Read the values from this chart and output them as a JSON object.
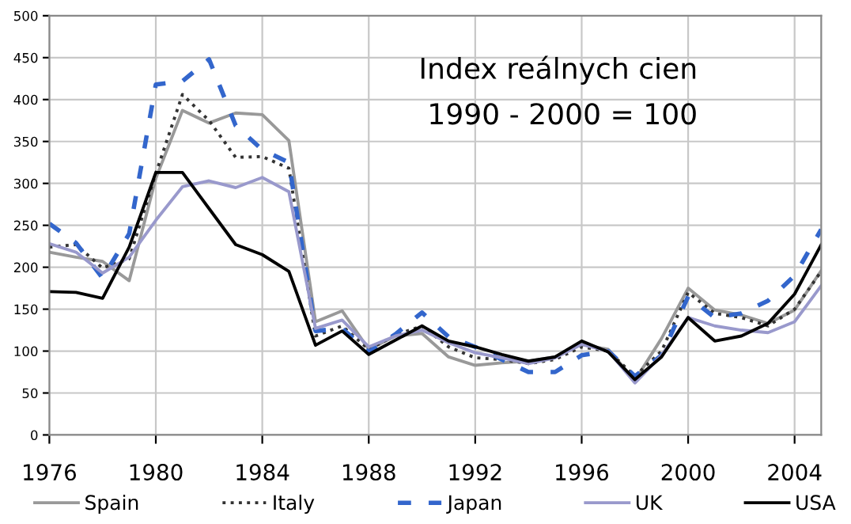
{
  "chart_data": {
    "type": "line",
    "x": [
      1976,
      1977,
      1978,
      1979,
      1980,
      1981,
      1982,
      1983,
      1984,
      1985,
      1986,
      1987,
      1988,
      1989,
      1990,
      1991,
      1992,
      1993,
      1994,
      1995,
      1996,
      1997,
      1998,
      1999,
      2000,
      2001,
      2002,
      2003,
      2004,
      2005
    ],
    "series": [
      {
        "name": "Spain",
        "color": "#999999",
        "line_style": "solid",
        "values": [
          218,
          212,
          207,
          184,
          306,
          387,
          372,
          384,
          382,
          351,
          135,
          148,
          102,
          118,
          121,
          93,
          83,
          86,
          88,
          93,
          108,
          102,
          65,
          115,
          175,
          149,
          143,
          133,
          149,
          196
        ]
      },
      {
        "name": "Italy",
        "color": "#333333",
        "line_style": "dotted",
        "values": [
          224,
          227,
          199,
          210,
          312,
          406,
          375,
          331,
          332,
          318,
          118,
          130,
          102,
          119,
          130,
          105,
          92,
          90,
          85,
          90,
          105,
          100,
          70,
          100,
          170,
          145,
          140,
          130,
          150,
          195
        ]
      },
      {
        "name": "Japan",
        "color": "#3366cc",
        "line_style": "dashed",
        "values": [
          252,
          229,
          187,
          240,
          418,
          422,
          448,
          369,
          340,
          325,
          124,
          127,
          99,
          120,
          146,
          117,
          105,
          90,
          75,
          75,
          95,
          100,
          70,
          95,
          165,
          140,
          145,
          160,
          190,
          245
        ]
      },
      {
        "name": "UK",
        "color": "#9999cc",
        "line_style": "solid",
        "values": [
          228,
          218,
          193,
          212,
          256,
          296,
          303,
          295,
          307,
          290,
          127,
          137,
          105,
          118,
          125,
          110,
          98,
          92,
          85,
          92,
          108,
          100,
          62,
          95,
          140,
          130,
          125,
          122,
          135,
          178
        ]
      },
      {
        "name": "USA",
        "color": "#000000",
        "line_style": "solid",
        "values": [
          171,
          170,
          163,
          224,
          313,
          313,
          270,
          227,
          215,
          195,
          107,
          124,
          96,
          113,
          130,
          112,
          105,
          96,
          88,
          93,
          112,
          99,
          66,
          93,
          140,
          112,
          118,
          133,
          168,
          227
        ]
      }
    ],
    "annotations": [
      "Index reálnych cien",
      "1990 - 2000 = 100"
    ],
    "xlim": [
      1976,
      2005
    ],
    "xticks": [
      1976,
      1980,
      1984,
      1988,
      1992,
      1996,
      2000,
      2004
    ],
    "ylim": [
      0,
      500
    ],
    "yticks": [
      0,
      50,
      100,
      150,
      200,
      250,
      300,
      350,
      400,
      450,
      500
    ],
    "grid": true,
    "legend": "bottom",
    "marker": "none"
  }
}
